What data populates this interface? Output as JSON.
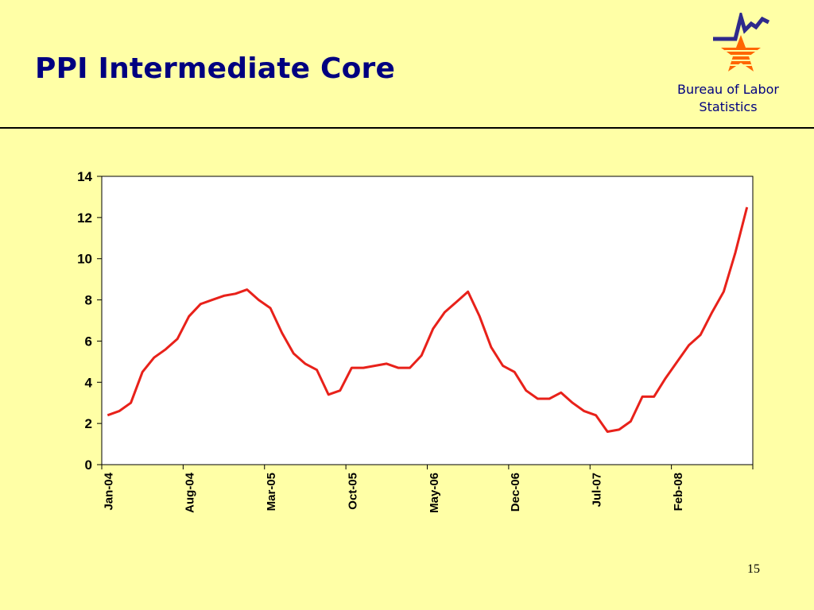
{
  "slide": {
    "title": "PPI Intermediate Core",
    "page_number": "15"
  },
  "logo": {
    "text_line1": "Bureau of Labor",
    "text_line2": "Statistics",
    "colors": {
      "navy": "#2E2A8C",
      "orange": "#FF6600"
    }
  },
  "chart_data": {
    "type": "line",
    "title": "",
    "xlabel": "",
    "ylabel": "",
    "ylim": [
      0,
      14
    ],
    "yticks": [
      0,
      2,
      4,
      6,
      8,
      10,
      12,
      14
    ],
    "xtick_labels": [
      "Jan-04",
      "Aug-04",
      "Mar-05",
      "Oct-05",
      "May-06",
      "Dec-06",
      "Jul-07",
      "Feb-08"
    ],
    "grid": false,
    "line_color": "#E8211A",
    "plot_background": "#FFFFFF",
    "series": [
      {
        "values": [
          2.4,
          2.6,
          3.0,
          4.5,
          5.2,
          5.6,
          6.1,
          7.2,
          7.8,
          8.0,
          8.2,
          8.3,
          8.5,
          8.0,
          7.6,
          6.4,
          5.4,
          4.9,
          4.6,
          3.4,
          3.6,
          4.7,
          4.7,
          4.8,
          4.9,
          4.7,
          4.7,
          5.3,
          6.6,
          7.4,
          7.9,
          8.4,
          7.2,
          5.7,
          4.8,
          4.5,
          3.6,
          3.2,
          3.2,
          3.5,
          3.0,
          2.6,
          2.4,
          1.6,
          1.7,
          2.1,
          3.3,
          3.3,
          4.2,
          5.0,
          5.8,
          6.3,
          7.4,
          8.4,
          10.3,
          12.5
        ]
      }
    ]
  }
}
